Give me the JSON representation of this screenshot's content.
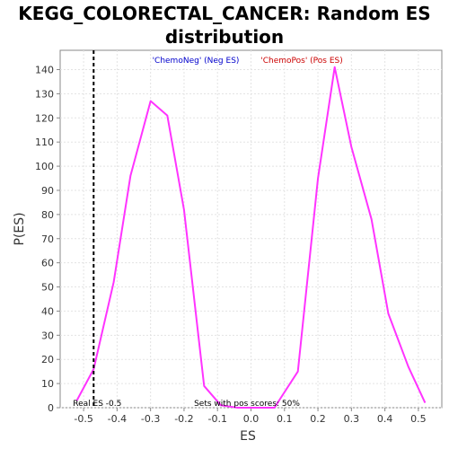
{
  "chart_data": {
    "type": "line",
    "title_line1": "KEGG_COLORECTAL_CANCER: Random ES",
    "title_line2": "distribution",
    "xlabel": "ES",
    "ylabel": "P(ES)",
    "xlim": [
      -0.57,
      0.57
    ],
    "ylim": [
      0,
      148
    ],
    "x_ticks": [
      -0.5,
      -0.4,
      -0.3,
      -0.2,
      -0.1,
      0.0,
      0.1,
      0.2,
      0.3,
      0.4,
      0.5
    ],
    "x_tick_labels": [
      "-0.5",
      "-0.4",
      "-0.3",
      "-0.2",
      "-0.1",
      "0.0",
      "0.1",
      "0.2",
      "0.3",
      "0.4",
      "0.5"
    ],
    "y_ticks": [
      0,
      10,
      20,
      30,
      40,
      50,
      60,
      70,
      80,
      90,
      100,
      110,
      120,
      130,
      140
    ],
    "y_tick_labels": [
      "0",
      "10",
      "20",
      "30",
      "40",
      "50",
      "60",
      "70",
      "80",
      "90",
      "100",
      "110",
      "120",
      "130",
      "140"
    ],
    "grid": true,
    "legend": [
      {
        "label": "'ChemoNeg' (Neg ES)",
        "color": "#0000cc"
      },
      {
        "label": "'ChemoPos' (Pos ES)",
        "color": "#cc0000"
      }
    ],
    "series": [
      {
        "color": "#ff33ff",
        "x": [
          -0.52,
          -0.47,
          -0.41,
          -0.36,
          -0.3,
          -0.25,
          -0.2,
          -0.14,
          -0.09,
          -0.04,
          0.02,
          0.07,
          0.14,
          0.2,
          0.25,
          0.3,
          0.36,
          0.41,
          0.47,
          0.52
        ],
        "y": [
          3,
          16,
          52,
          96,
          127,
          121,
          82,
          9,
          1,
          0,
          0,
          0,
          15,
          95,
          141,
          108,
          78,
          39,
          17,
          2
        ]
      }
    ],
    "real_es": {
      "x": -0.47,
      "label": "Real ES -0.5",
      "color": "#000000"
    },
    "annotations": [
      {
        "text": "Sets with pos scores: 50%"
      }
    ]
  }
}
